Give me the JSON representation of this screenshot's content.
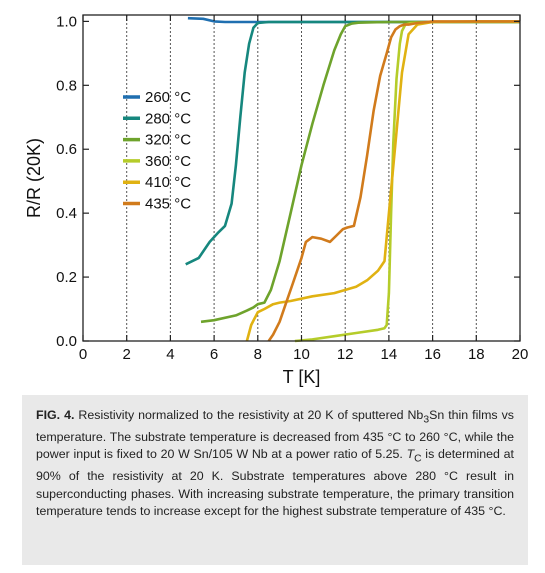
{
  "chart_data": {
    "type": "line",
    "xlabel": "T [K]",
    "ylabel": "R/R (20K)",
    "xlim": [
      0,
      20
    ],
    "ylim": [
      0,
      1.02
    ],
    "xticks": [
      0,
      2,
      4,
      6,
      8,
      10,
      12,
      14,
      16,
      18,
      20
    ],
    "yticks": [
      0.0,
      0.2,
      0.4,
      0.6,
      0.8,
      1.0
    ],
    "xtick_labels": [
      "0",
      "2",
      "4",
      "6",
      "8",
      "10",
      "12",
      "14",
      "16",
      "18",
      "20"
    ],
    "ytick_labels": [
      "0.0",
      "0.2",
      "0.4",
      "0.6",
      "0.8",
      "1.0"
    ],
    "grid": "vertical dotted lines at x = 2, 4, ... 18",
    "legend_position": "left-center",
    "series": [
      {
        "name": "260 °C",
        "color": "#1f6fb0",
        "x": [
          4.8,
          5.5,
          6.0,
          6.5,
          7.0,
          8.0,
          10.0,
          12.0,
          14.0,
          16.0,
          18.0,
          20.0
        ],
        "y": [
          1.01,
          1.008,
          1.0,
          0.998,
          0.998,
          0.998,
          0.998,
          0.998,
          0.998,
          0.998,
          0.998,
          0.998
        ]
      },
      {
        "name": "280 °C",
        "color": "#16877e",
        "x": [
          4.7,
          5.3,
          5.8,
          6.2,
          6.5,
          6.8,
          7.0,
          7.2,
          7.4,
          7.6,
          7.8,
          8.0,
          8.5,
          10.0,
          12.0,
          14.0,
          16.0,
          18.0,
          20.0
        ],
        "y": [
          0.24,
          0.26,
          0.31,
          0.34,
          0.36,
          0.43,
          0.55,
          0.7,
          0.84,
          0.93,
          0.98,
          0.995,
          0.998,
          0.998,
          0.998,
          0.998,
          0.998,
          0.998,
          0.998
        ]
      },
      {
        "name": "320 °C",
        "color": "#6ea32c",
        "x": [
          5.4,
          6.0,
          7.0,
          7.5,
          7.8,
          8.0,
          8.3,
          8.6,
          9.0,
          9.5,
          10.0,
          10.5,
          11.0,
          11.5,
          11.8,
          12.0,
          12.3,
          12.6,
          13.0,
          14.0,
          16.0,
          18.0,
          20.0
        ],
        "y": [
          0.06,
          0.065,
          0.08,
          0.095,
          0.105,
          0.115,
          0.12,
          0.16,
          0.25,
          0.4,
          0.55,
          0.68,
          0.8,
          0.91,
          0.96,
          0.985,
          0.993,
          0.996,
          0.997,
          0.998,
          0.998,
          0.998,
          0.998
        ]
      },
      {
        "name": "360 °C",
        "color": "#b5cc2a",
        "x": [
          9.7,
          10.5,
          11.5,
          12.5,
          13.5,
          13.8,
          13.9,
          14.0,
          14.1,
          14.2,
          14.35,
          14.5,
          14.6,
          14.75,
          15.0,
          16.0,
          18.0,
          20.0
        ],
        "y": [
          0.0,
          0.005,
          0.015,
          0.025,
          0.035,
          0.04,
          0.05,
          0.15,
          0.4,
          0.62,
          0.82,
          0.93,
          0.97,
          0.99,
          0.995,
          0.998,
          0.998,
          0.998
        ]
      },
      {
        "name": "410 °C",
        "color": "#e0b212",
        "x": [
          7.5,
          7.7,
          8.0,
          8.3,
          8.7,
          9.0,
          9.5,
          10.5,
          11.5,
          12.5,
          13.0,
          13.5,
          13.8,
          14.0,
          14.3,
          14.6,
          14.9,
          15.3,
          16.0,
          18.0,
          20.0
        ],
        "y": [
          0.0,
          0.05,
          0.09,
          0.1,
          0.115,
          0.12,
          0.125,
          0.14,
          0.15,
          0.17,
          0.19,
          0.22,
          0.25,
          0.4,
          0.62,
          0.84,
          0.96,
          0.99,
          0.998,
          1.0,
          1.0
        ]
      },
      {
        "name": "435 °C",
        "color": "#d17b1c",
        "x": [
          8.5,
          8.7,
          9.0,
          9.3,
          9.6,
          10.0,
          10.2,
          10.5,
          10.9,
          11.3,
          11.6,
          11.9,
          12.1,
          12.4,
          12.7,
          13.0,
          13.3,
          13.6,
          13.9,
          14.1,
          14.3,
          14.5,
          14.7,
          14.9,
          15.3,
          16.0,
          18.0,
          20.0
        ],
        "y": [
          0.0,
          0.02,
          0.06,
          0.12,
          0.18,
          0.26,
          0.31,
          0.325,
          0.32,
          0.31,
          0.33,
          0.35,
          0.355,
          0.36,
          0.45,
          0.58,
          0.72,
          0.83,
          0.9,
          0.95,
          0.975,
          0.985,
          0.99,
          0.99,
          0.995,
          1.0,
          1.0,
          1.0
        ]
      }
    ]
  },
  "caption": {
    "fig_label": "FIG. 4.",
    "part1": " Resistivity normalized to the resistivity at 20 K of sputtered Nb",
    "sub1": "3",
    "part2": "Sn thin films vs temperature. The substrate temperature is decreased from 435 °C to 260 °C, while the power input is fixed to 20 W Sn/105 W Nb at a power ratio of 5.25. ",
    "tc_symbol": "T",
    "tc_sub": "C",
    "part3": " is determined at 90% of the resistivity at 20 K. Substrate temperatures above 280 °C result in superconducting phases. With increasing substrate temperature, the primary transition temperature tends to increase except for the highest substrate temperature of 435 °C."
  }
}
